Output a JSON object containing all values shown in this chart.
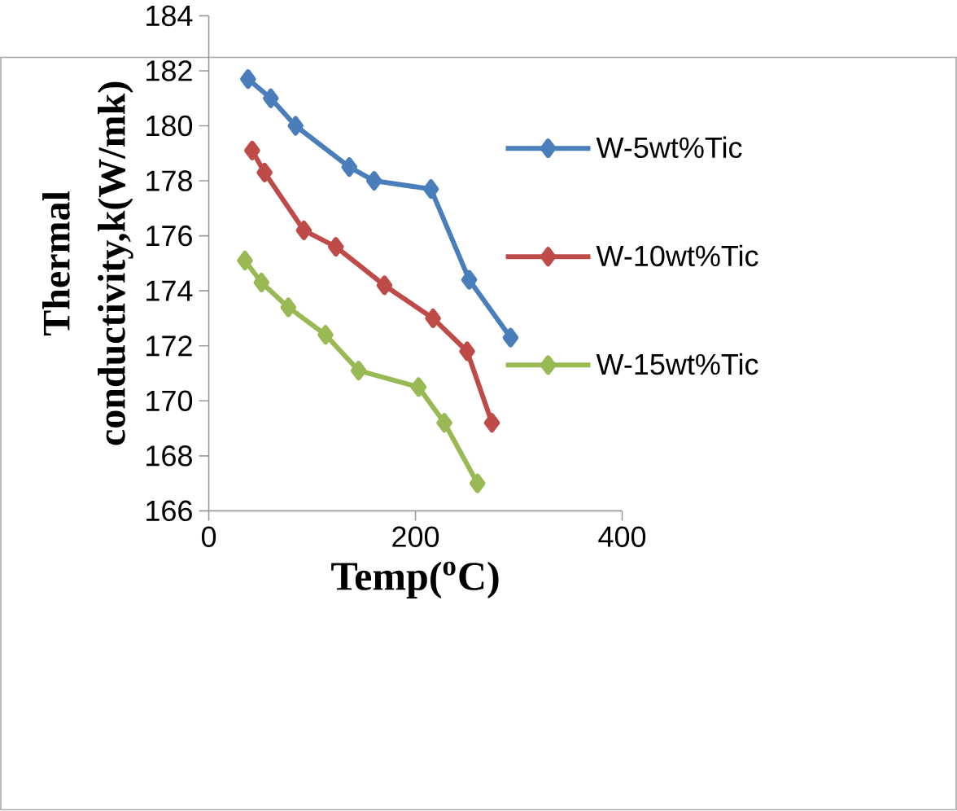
{
  "chart_data": {
    "type": "line",
    "xlabel": "Temp($^{o}$C)",
    "ylabel": "Thermal conductivity,k(W/mk)",
    "xlim": [
      0,
      400
    ],
    "xticks": [
      0,
      200,
      400
    ],
    "ylim": [
      166,
      184
    ],
    "yticks": [
      166,
      168,
      170,
      172,
      174,
      176,
      178,
      180,
      182,
      184
    ],
    "grid": false,
    "legend": "right",
    "marker": "diamond",
    "line_style": "solid",
    "series": [
      {
        "name": "W-5wt%Tic",
        "color": "#4a7ebb",
        "x": [
          38,
          60,
          84,
          136,
          160,
          215,
          252,
          292
        ],
        "values": [
          181.7,
          181.0,
          180.0,
          178.5,
          178.0,
          177.7,
          174.4,
          172.3
        ]
      },
      {
        "name": "W-10wt%Tic",
        "color": "#be4b48",
        "x": [
          42,
          54,
          92,
          123,
          170,
          217,
          250,
          274
        ],
        "values": [
          179.1,
          178.3,
          176.2,
          175.6,
          174.2,
          173.0,
          171.8,
          169.2
        ]
      },
      {
        "name": "W-15wt%Tic",
        "color": "#98b954",
        "x": [
          35,
          51,
          77,
          113,
          145,
          203,
          228,
          260
        ],
        "values": [
          175.1,
          174.3,
          173.4,
          172.4,
          171.1,
          170.5,
          169.2,
          167.0
        ]
      }
    ]
  }
}
